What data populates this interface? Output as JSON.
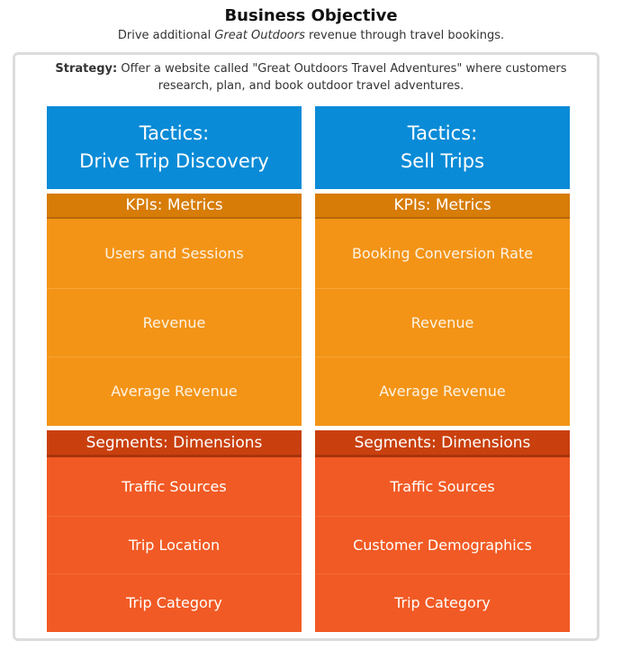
{
  "header": {
    "title": "Business Objective",
    "subtitle_before": "Drive additional ",
    "subtitle_emphasis": "Great Outdoors",
    "subtitle_after": " revenue through travel bookings."
  },
  "strategy": {
    "label": "Strategy:",
    "text": " Offer a website called \"Great Outdoors Travel Adventures\" where customers research, plan, and book outdoor travel adventures."
  },
  "columns": [
    {
      "tactics_label": "Tactics:",
      "tactics_name": "Drive Trip Discovery",
      "kpi_header": "KPIs: Metrics",
      "kpis": [
        "Users and Sessions",
        "Revenue",
        "Average Revenue"
      ],
      "segment_header": "Segments: Dimensions",
      "segments": [
        "Traffic Sources",
        "Trip Location",
        "Trip Category"
      ]
    },
    {
      "tactics_label": "Tactics:",
      "tactics_name": "Sell Trips",
      "kpi_header": "KPIs: Metrics",
      "kpis": [
        "Booking Conversion Rate",
        "Revenue",
        "Average Revenue"
      ],
      "segment_header": "Segments: Dimensions",
      "segments": [
        "Traffic Sources",
        "Customer Demographics",
        "Trip Category"
      ]
    }
  ],
  "colors": {
    "tactics": "#0a8bd7",
    "kpi_header": "#d77c07",
    "kpi_body": "#f39417",
    "segment_header": "#c9400e",
    "segment_body": "#f15a24"
  }
}
